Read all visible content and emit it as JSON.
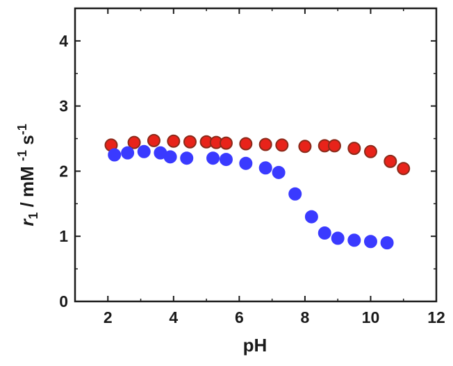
{
  "chart_data": {
    "type": "scatter",
    "xlabel": "pH",
    "ylabel": {
      "var": "r",
      "sub": "1",
      "unit1": " / mM ",
      "sup1": "-1",
      "unit2": " s",
      "sup2": "-1"
    },
    "xlim": [
      1,
      12
    ],
    "ylim": [
      0,
      4.5
    ],
    "xticks": [
      2,
      4,
      6,
      8,
      10,
      12
    ],
    "yticks": [
      0,
      1,
      2,
      3,
      4
    ],
    "grid": false,
    "series": [
      {
        "color": "#e8231a",
        "edge": "#8a2a1a",
        "points": [
          [
            2.1,
            2.4
          ],
          [
            2.8,
            2.44
          ],
          [
            3.4,
            2.47
          ],
          [
            4.0,
            2.46
          ],
          [
            4.5,
            2.45
          ],
          [
            5.0,
            2.45
          ],
          [
            5.3,
            2.44
          ],
          [
            5.6,
            2.43
          ],
          [
            6.2,
            2.42
          ],
          [
            6.8,
            2.41
          ],
          [
            7.3,
            2.4
          ],
          [
            8.0,
            2.38
          ],
          [
            8.6,
            2.39
          ],
          [
            8.9,
            2.39
          ],
          [
            9.5,
            2.35
          ],
          [
            10.0,
            2.3
          ],
          [
            10.6,
            2.15
          ],
          [
            11.0,
            2.04
          ]
        ]
      },
      {
        "color": "#3a3aff",
        "edge": "#3a3aff",
        "points": [
          [
            2.2,
            2.25
          ],
          [
            2.6,
            2.28
          ],
          [
            3.1,
            2.3
          ],
          [
            3.6,
            2.28
          ],
          [
            3.9,
            2.22
          ],
          [
            4.4,
            2.2
          ],
          [
            5.2,
            2.2
          ],
          [
            5.6,
            2.18
          ],
          [
            6.2,
            2.12
          ],
          [
            6.8,
            2.05
          ],
          [
            7.2,
            1.98
          ],
          [
            7.7,
            1.65
          ],
          [
            8.2,
            1.3
          ],
          [
            8.6,
            1.05
          ],
          [
            9.0,
            0.97
          ],
          [
            9.5,
            0.94
          ],
          [
            10.0,
            0.92
          ],
          [
            10.5,
            0.9
          ]
        ]
      }
    ]
  }
}
